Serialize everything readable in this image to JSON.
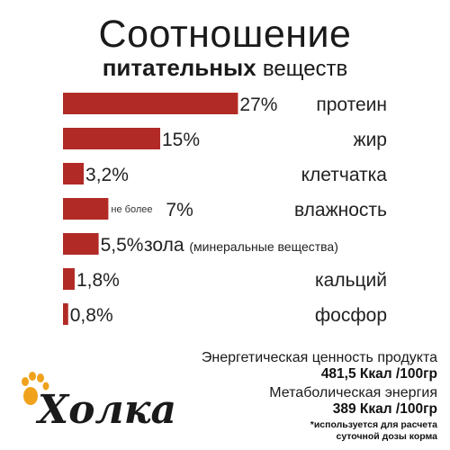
{
  "title": {
    "line1": "Соотношение",
    "line2_bold": "питательных",
    "line2_light": "веществ"
  },
  "chart_data": {
    "type": "bar",
    "orientation": "horizontal",
    "bar_color": "#b22a25",
    "categories": [
      "протеин",
      "жир",
      "клетчатка",
      "влажность",
      "зола",
      "кальций",
      "фосфор"
    ],
    "values": [
      27,
      15,
      3.2,
      7,
      5.5,
      1.8,
      0.8
    ],
    "value_labels": [
      "27%",
      "15%",
      "3,2%",
      "7%",
      "5,5%",
      "1,8%",
      "0,8%"
    ],
    "value_prefixes": [
      "",
      "",
      "",
      "не более",
      "",
      "",
      ""
    ],
    "label_suffixes": [
      "",
      "",
      "",
      "",
      "(минеральные вещества)",
      "",
      ""
    ]
  },
  "energy": {
    "label1": "Энергетическая ценность продукта",
    "value1": "481,5 Ккал /100гр",
    "label2": "Метаболическая энергия",
    "value2": "389 Ккал /100гр",
    "note_line1": "*используется для расчета",
    "note_line2": "суточной дозы корма"
  },
  "logo": {
    "text": "Холка",
    "text_color": "#1a1a1a",
    "paw_color": "#f0a21c"
  }
}
